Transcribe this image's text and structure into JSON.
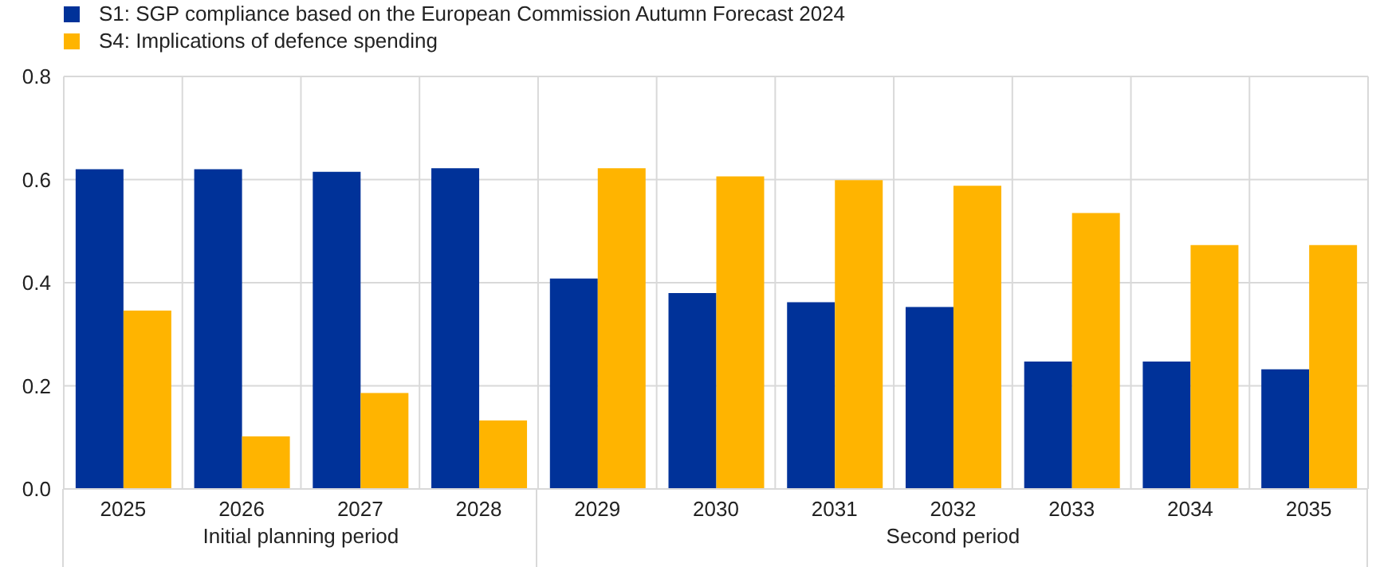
{
  "chart_data": {
    "type": "bar",
    "categories": [
      "2025",
      "2026",
      "2027",
      "2028",
      "2029",
      "2030",
      "2031",
      "2032",
      "2033",
      "2034",
      "2035"
    ],
    "series": [
      {
        "name": "S1: SGP compliance based on the European Commission Autumn Forecast 2024",
        "color": "#003299",
        "values": [
          0.62,
          0.62,
          0.615,
          0.622,
          0.408,
          0.38,
          0.362,
          0.353,
          0.247,
          0.247,
          0.232
        ]
      },
      {
        "name": "S4: Implications of defence spending",
        "color": "#ffb400",
        "values": [
          0.346,
          0.102,
          0.186,
          0.133,
          0.622,
          0.606,
          0.599,
          0.588,
          0.535,
          0.473,
          0.473
        ]
      }
    ],
    "ylim": [
      0,
      0.8
    ],
    "yticks": [
      {
        "value": 0,
        "label": "0.0"
      },
      0.2,
      0.4,
      0.6,
      0.8
    ],
    "grid": true,
    "legend": "top left",
    "annotations": [
      "Initial planning period",
      "Second period"
    ]
  }
}
